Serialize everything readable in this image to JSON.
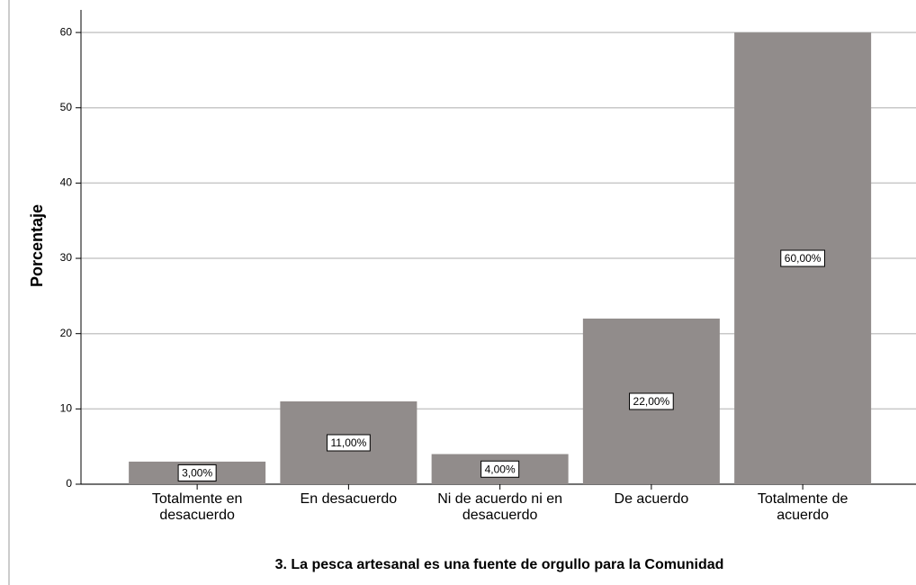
{
  "chart_data": {
    "type": "bar",
    "x_label": "3. La pesca artesanal es una fuente de orgullo para la Comunidad",
    "y_label": "Porcentaje",
    "categories": [
      "Totalmente en desacuerdo",
      "En desacuerdo",
      "Ni de acuerdo ni en desacuerdo",
      "De acuerdo",
      "Totalmente de acuerdo"
    ],
    "values": [
      3,
      11,
      4,
      22,
      60
    ],
    "value_labels": [
      "3,00%",
      "11,00%",
      "4,00%",
      "22,00%",
      "60,00%"
    ],
    "color": "#918c8b",
    "ylim": [
      0,
      63
    ],
    "yticks": [
      0,
      10,
      20,
      30,
      40,
      50,
      60
    ],
    "grid": true
  }
}
